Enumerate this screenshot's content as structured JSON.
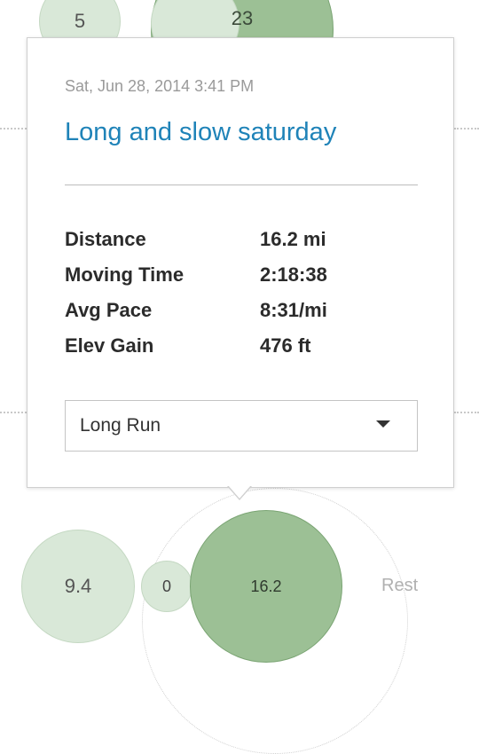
{
  "bubbles": {
    "top": [
      {
        "label": "5"
      },
      {
        "label": "23"
      }
    ],
    "bottom": [
      {
        "label": "9.4"
      },
      {
        "label": "0"
      },
      {
        "label": "16.2"
      }
    ],
    "rest_label": "Rest"
  },
  "popover": {
    "timestamp": "Sat, Jun 28, 2014 3:41 PM",
    "title": "Long and slow saturday",
    "stats": [
      {
        "label": "Distance",
        "value": "16.2 mi"
      },
      {
        "label": "Moving Time",
        "value": "2:18:38"
      },
      {
        "label": "Avg Pace",
        "value": "8:31/mi"
      },
      {
        "label": "Elev Gain",
        "value": "476 ft"
      }
    ],
    "run_type": {
      "selected": "Long Run",
      "caret_icon": "caret-down-icon"
    }
  },
  "colors": {
    "accent": "#1f83b8",
    "bubble_light": "#d9e8d8",
    "bubble_dark": "#9cc095",
    "rest_text": "#b0b0b0"
  }
}
